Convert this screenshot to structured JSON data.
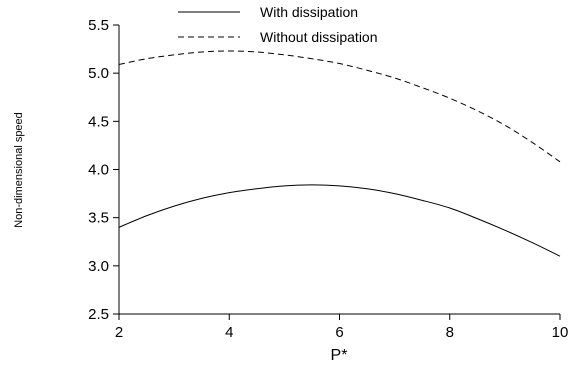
{
  "chart_data": {
    "type": "line",
    "xlabel": "P*",
    "ylabel": "Non-dimensional speed",
    "xlim": [
      2,
      10
    ],
    "ylim": [
      2.5,
      5.5
    ],
    "xticks": [
      "2",
      "4",
      "6",
      "8",
      "10"
    ],
    "yticks": [
      "2.5",
      "3.0",
      "3.5",
      "4.0",
      "4.5",
      "5.0",
      "5.5"
    ],
    "grid": false,
    "legend_position": "top-center",
    "series": [
      {
        "name": "With dissipation",
        "style": "solid",
        "x": [
          2,
          2.5,
          3,
          3.5,
          4,
          4.5,
          5,
          5.5,
          6,
          6.5,
          7,
          7.5,
          8,
          8.5,
          9,
          9.5,
          10
        ],
        "y": [
          3.4,
          3.52,
          3.62,
          3.7,
          3.76,
          3.8,
          3.83,
          3.84,
          3.83,
          3.8,
          3.75,
          3.68,
          3.6,
          3.49,
          3.37,
          3.24,
          3.1
        ]
      },
      {
        "name": "Without dissipation",
        "style": "dashed",
        "x": [
          2,
          2.5,
          3,
          3.5,
          4,
          4.5,
          5,
          5.5,
          6,
          6.5,
          7,
          7.5,
          8,
          8.5,
          9,
          9.5,
          10
        ],
        "y": [
          5.09,
          5.15,
          5.19,
          5.22,
          5.23,
          5.22,
          5.19,
          5.15,
          5.1,
          5.03,
          4.95,
          4.85,
          4.74,
          4.61,
          4.46,
          4.28,
          4.08
        ]
      }
    ]
  }
}
